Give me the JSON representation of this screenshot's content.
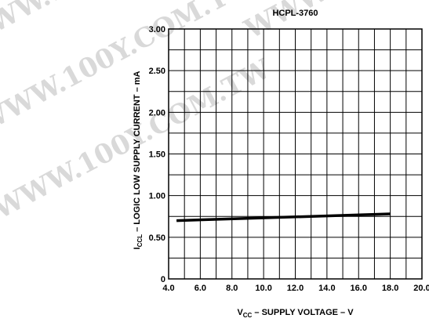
{
  "chart_data": {
    "type": "line",
    "title": "HCPL-3760",
    "xlabel_main": "V",
    "xlabel_sub": "CC",
    "xlabel_rest": " – SUPPLY VOLTAGE – V",
    "ylabel_main": "I",
    "ylabel_sub": "CCL",
    "ylabel_rest": " – LOGIC LOW SUPPLY CURRENT – mA",
    "xlim": [
      4.0,
      20.0
    ],
    "ylim": [
      0,
      3.0
    ],
    "x_ticks": [
      "4.0",
      "6.0",
      "8.0",
      "10.0",
      "12.0",
      "14.0",
      "16.0",
      "18.0",
      "20.0"
    ],
    "y_ticks": [
      "0",
      "0.50",
      "1.00",
      "1.50",
      "2.00",
      "2.50",
      "3.00"
    ],
    "grid": true,
    "series": [
      {
        "x": [
          4.5,
          18.0
        ],
        "y": [
          0.7,
          0.78
        ]
      }
    ]
  },
  "watermark": "WWW.100Y.COM.TW"
}
